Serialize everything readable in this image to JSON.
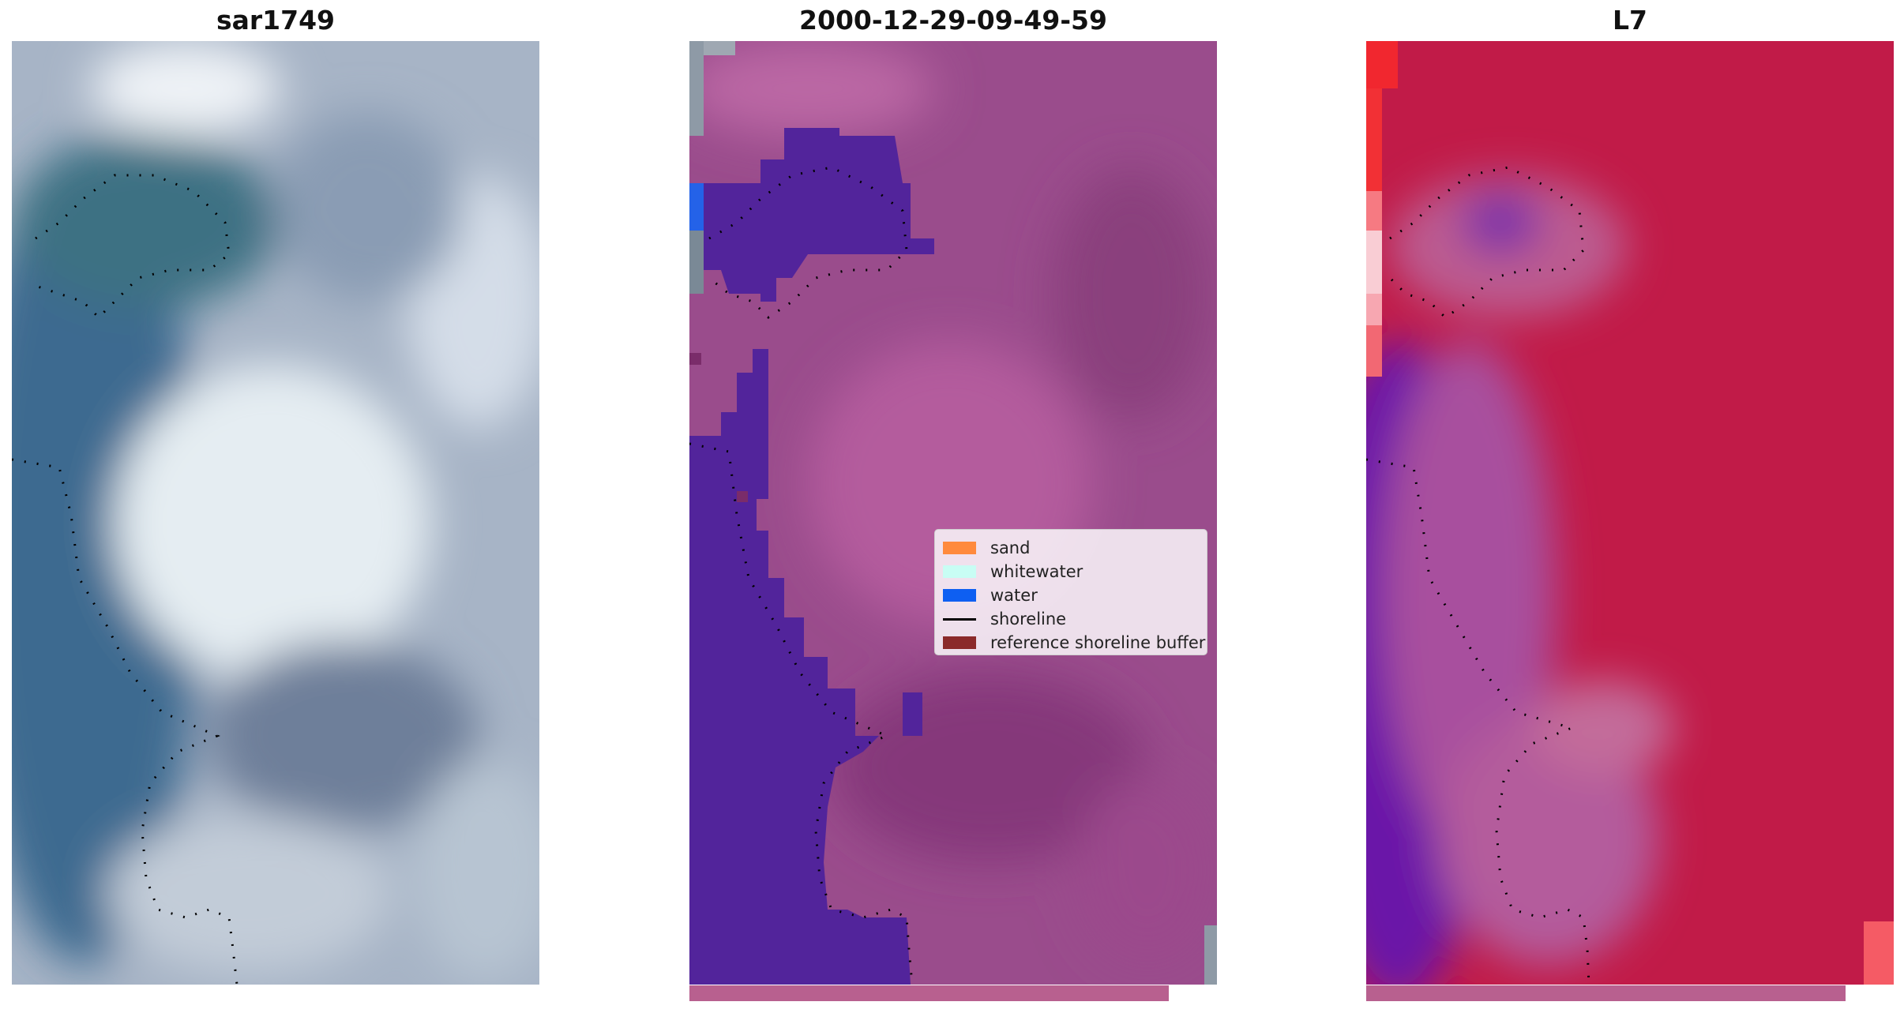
{
  "panels": [
    {
      "title": "sar1749"
    },
    {
      "title": "2000-12-29-09-49-59"
    },
    {
      "title": "L7"
    }
  ],
  "legend": {
    "items": [
      {
        "label": "sand",
        "color": "#ff8a3d",
        "kind": "patch"
      },
      {
        "label": "whitewater",
        "color": "#c8fdf4",
        "kind": "patch"
      },
      {
        "label": "water",
        "color": "#0e5ff2",
        "kind": "patch"
      },
      {
        "label": "shoreline",
        "color": "#000000",
        "kind": "line"
      },
      {
        "label": "reference shoreline buffer",
        "color": "#8b2a2a",
        "kind": "patch"
      }
    ]
  },
  "colors": {
    "classified_water": "#52249b",
    "rgb_background": "#a9b6c9",
    "classified_background": "#9a4c8c",
    "ndwi_background": "#c11b48",
    "bottom_strip": "#b8608f"
  }
}
